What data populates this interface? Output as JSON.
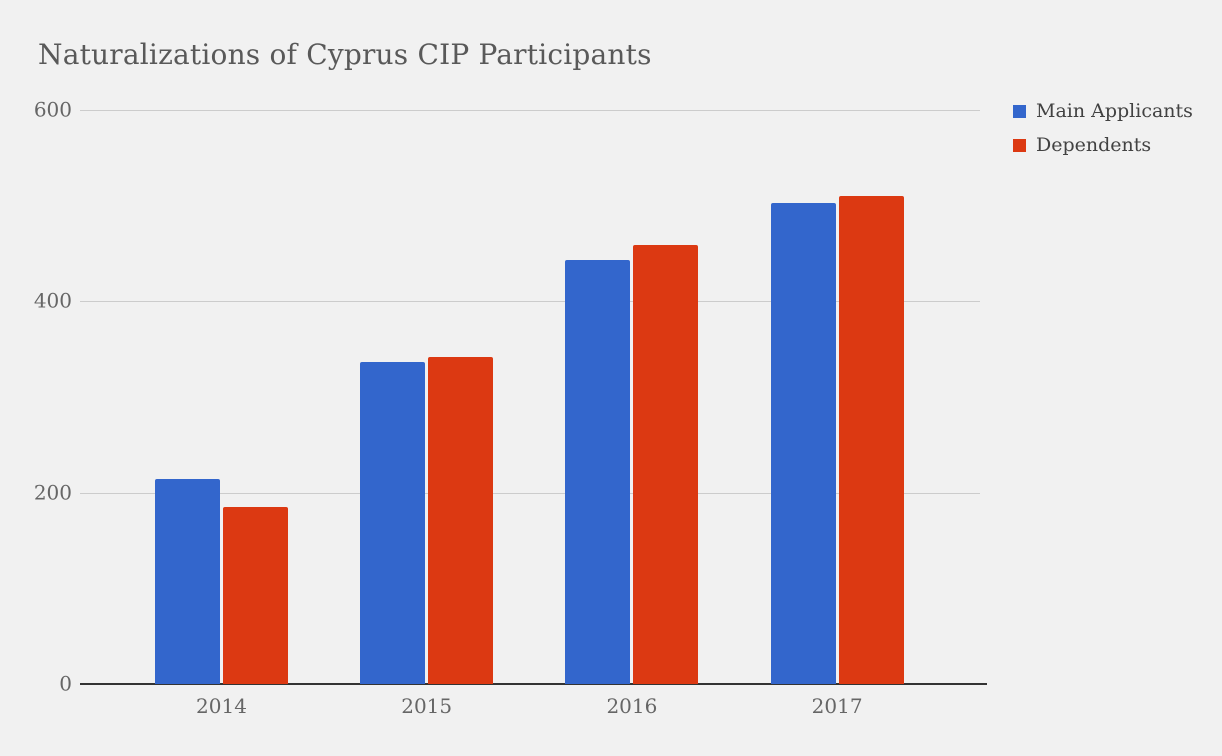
{
  "page": {
    "background": "#f1f1f1",
    "grid_color": "#cccccc",
    "axis_color": "#333333",
    "title_color": "#595959",
    "tick_label_color": "#666666",
    "legend_text_color": "#424242"
  },
  "chart_data": {
    "type": "bar",
    "title": "Naturalizations of Cyprus CIP Participants",
    "xlabel": "",
    "ylabel": "",
    "categories": [
      "2014",
      "2015",
      "2016",
      "2017"
    ],
    "series": [
      {
        "name": "Main Applicants",
        "color": "#3366cc",
        "values": [
          214,
          337,
          443,
          503
        ]
      },
      {
        "name": "Dependents",
        "color": "#dc3912",
        "values": [
          185,
          342,
          459,
          510
        ]
      }
    ],
    "ylim": [
      0,
      600
    ],
    "yticks": [
      0,
      200,
      400,
      600
    ],
    "grid": true,
    "legend_position": "right"
  }
}
